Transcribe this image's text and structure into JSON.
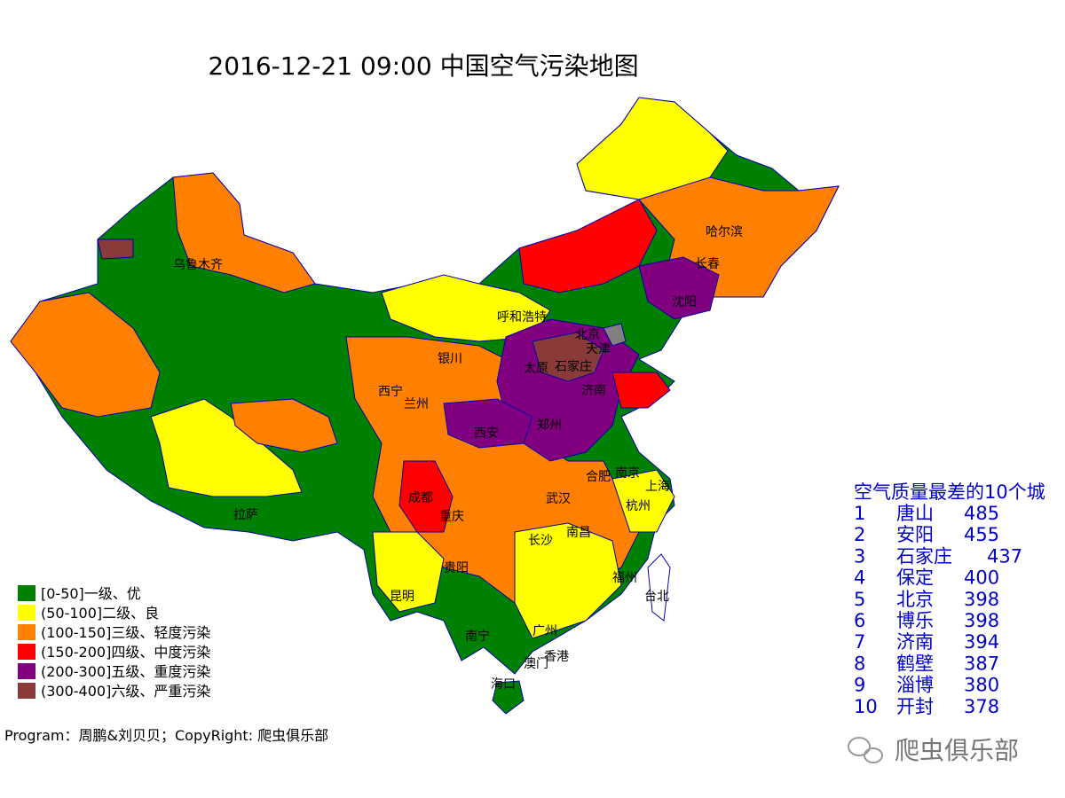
{
  "title": "2016-12-21 09:00 中国空气污染地图",
  "cities": [
    "乌鲁木齐",
    "呼和浩特",
    "银川",
    "北京",
    "天津",
    "太原",
    "石家庄",
    "济南",
    "西宁",
    "兰州",
    "西安",
    "郑州",
    "哈尔滨",
    "长春",
    "沈阳",
    "成都",
    "重庆",
    "武汉",
    "合肥",
    "南京",
    "上海",
    "杭州",
    "拉萨",
    "长沙",
    "南昌",
    "贵阳",
    "昆明",
    "福州",
    "台北",
    "南宁",
    "广州",
    "澳门",
    "香港",
    "海口"
  ],
  "legend": [
    {
      "label": "[0-50]一级、优",
      "color": "#008000"
    },
    {
      "label": "(50-100]二级、良",
      "color": "#ffff00"
    },
    {
      "label": "(100-150]三级、轻度污染",
      "color": "#ff8000"
    },
    {
      "label": "(150-200]四级、中度污染",
      "color": "#ff0000"
    },
    {
      "label": "(200-300]五级、重度污染",
      "color": "#800080"
    },
    {
      "label": "(300-400]六级、严重污染",
      "color": "#8b3a3a"
    }
  ],
  "ranking": {
    "title": "空气质量最差的10个城",
    "rows": [
      {
        "rank": 1,
        "city": "唐山",
        "aqi": 485
      },
      {
        "rank": 2,
        "city": "安阳",
        "aqi": 455
      },
      {
        "rank": 3,
        "city": "石家庄",
        "aqi": 437
      },
      {
        "rank": 4,
        "city": "保定",
        "aqi": 400
      },
      {
        "rank": 5,
        "city": "北京",
        "aqi": 398
      },
      {
        "rank": 6,
        "city": "博乐",
        "aqi": 398
      },
      {
        "rank": 7,
        "city": "济南",
        "aqi": 394
      },
      {
        "rank": 8,
        "city": "鹤壁",
        "aqi": 387
      },
      {
        "rank": 9,
        "city": "淄博",
        "aqi": 380
      },
      {
        "rank": 10,
        "city": "开封",
        "aqi": 378
      }
    ]
  },
  "credit": "Program：周鹏&刘贝贝；CopyRight: 爬虫俱乐部",
  "watermark": "爬虫俱乐部"
}
